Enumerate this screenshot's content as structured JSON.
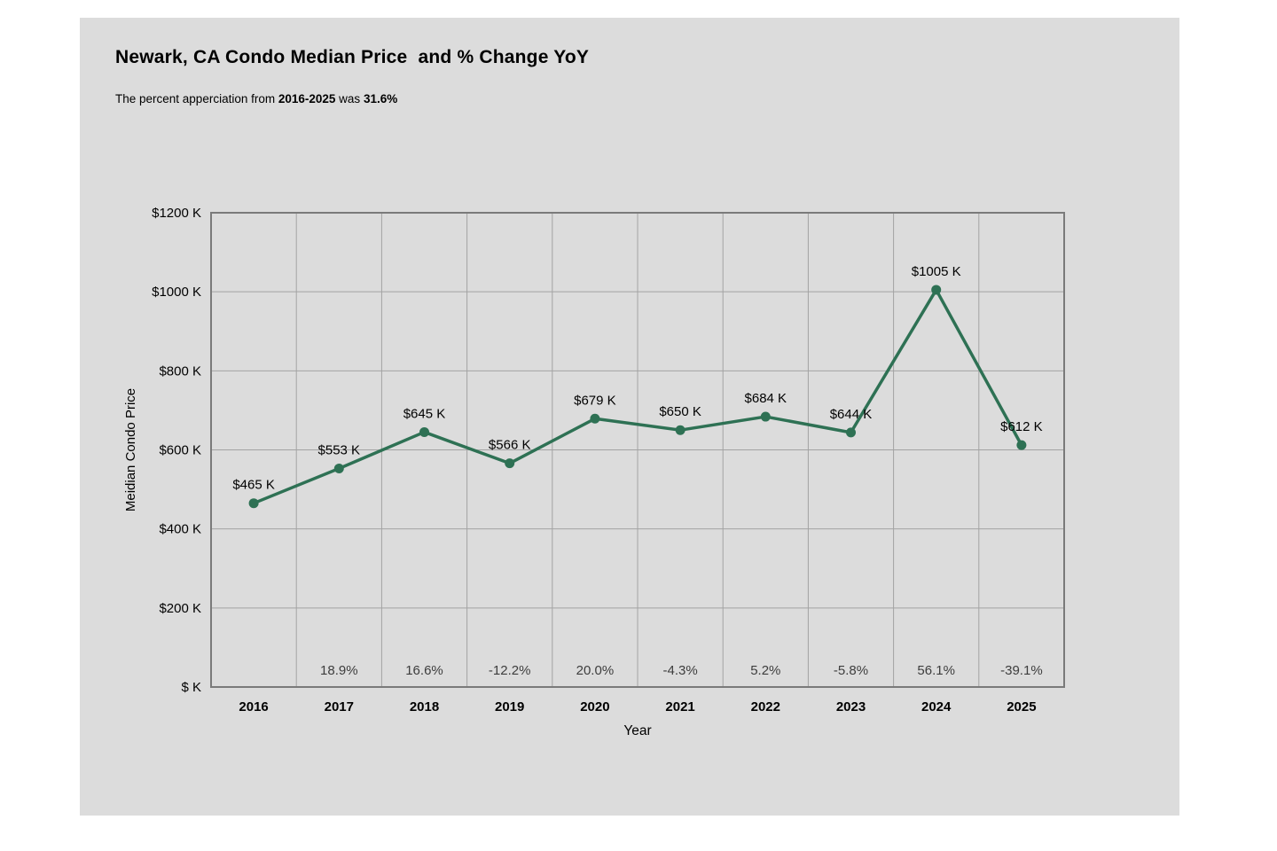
{
  "header": {
    "title": "Newark, CA Condo Median Price  and % Change YoY",
    "subtitle_parts": {
      "prefix": "The percent apperciation from ",
      "range": "2016-2025",
      "mid": " was ",
      "value": "31.6%"
    }
  },
  "chart_data": {
    "type": "line",
    "title": "Newark, CA Condo Median Price  and % Change YoY",
    "xlabel": "Year",
    "ylabel": "Meidian Condo Price",
    "categories": [
      "2016",
      "2017",
      "2018",
      "2019",
      "2020",
      "2021",
      "2022",
      "2023",
      "2024",
      "2025"
    ],
    "series": [
      {
        "name": "Median Condo Price ($K)",
        "values": [
          465,
          553,
          645,
          566,
          679,
          650,
          684,
          644,
          1005,
          612
        ]
      }
    ],
    "point_labels": [
      "$465 K",
      "$553 K",
      "$645 K",
      "$566 K",
      "$679 K",
      "$650 K",
      "$684 K",
      "$644 K",
      "$1005 K",
      "$612 K"
    ],
    "pct_change_labels": [
      "",
      "18.9%",
      "16.6%",
      "-12.2%",
      "20.0%",
      "-4.3%",
      "5.2%",
      "-5.8%",
      "56.1%",
      "-39.1%"
    ],
    "ylim": [
      0,
      1200
    ],
    "y_axis": {
      "ticks": [
        {
          "v": 1200,
          "label": "$1200 K"
        },
        {
          "v": 1000,
          "label": "$1000 K"
        },
        {
          "v": 800,
          "label": "$800 K"
        },
        {
          "v": 600,
          "label": "$600 K"
        },
        {
          "v": 400,
          "label": "$400 K"
        },
        {
          "v": 200,
          "label": "$200 K"
        },
        {
          "v": 0,
          "label": "$ K"
        }
      ]
    },
    "grid": true,
    "legend": "none",
    "colors": {
      "line": "#2e7154",
      "grid": "#a3a3a3",
      "plot_border": "#7a7a7a",
      "pct_text": "#3d3d3d",
      "label_text": "#000000",
      "panel_bg": "#dcdcdc"
    }
  }
}
